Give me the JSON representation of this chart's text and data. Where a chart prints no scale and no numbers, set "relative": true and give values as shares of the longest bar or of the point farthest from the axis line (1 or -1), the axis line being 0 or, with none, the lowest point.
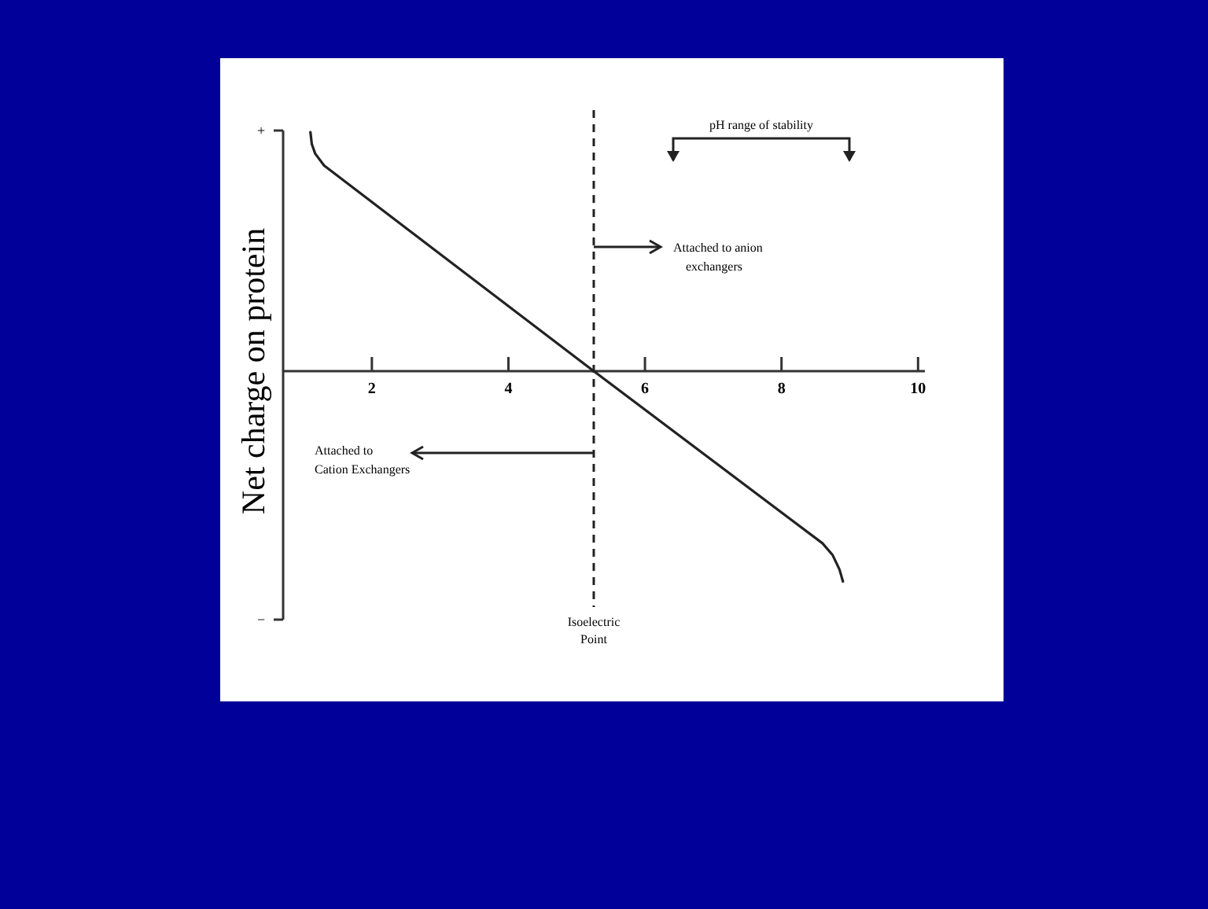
{
  "chart_data": {
    "type": "line",
    "relative": true,
    "ylabel": "Net charge on protein",
    "x": [
      1.1,
      1.12,
      1.17,
      1.3,
      5.25,
      8.6,
      8.75,
      8.85,
      8.9
    ],
    "series": [
      {
        "color": "#222222",
        "values": [
          1,
          0.95,
          0.91,
          0.86,
          0,
          -0.72,
          -0.77,
          -0.83,
          -0.88
        ]
      }
    ],
    "xlim": [
      0.7,
      10.1
    ],
    "xticks": [
      2,
      4,
      6,
      8,
      10
    ],
    "ref_lines": [
      {
        "axis": "x",
        "value": 5.25,
        "label": "Isoelectric Point",
        "line_style": "dashed"
      }
    ],
    "annotations": [
      "+",
      "−",
      "pH range of stability",
      "Attached to anion exchangers",
      "Attached to Cation Exchangers"
    ],
    "line_style": "solid",
    "marker": "none",
    "grid": false
  }
}
